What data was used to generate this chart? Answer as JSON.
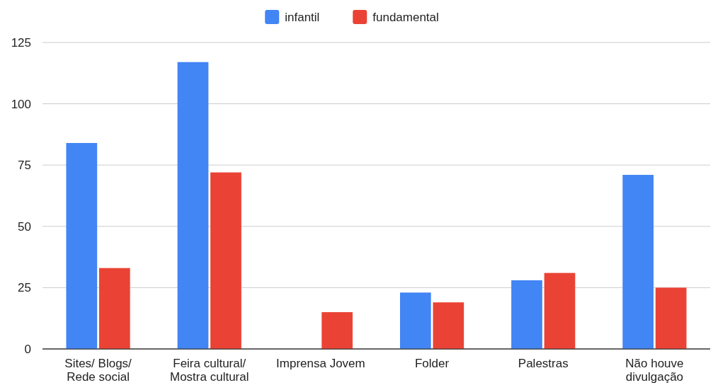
{
  "chart_data": {
    "type": "bar",
    "categories": [
      "Sites/ Blogs/ Rede social",
      "Feira cultural/ Mostra cultural",
      "Imprensa Jovem",
      "Folder",
      "Palestras",
      "Não houve divulgação"
    ],
    "series": [
      {
        "name": "infantil",
        "color": "#4285f4",
        "values": [
          84,
          117,
          0,
          23,
          28,
          71
        ]
      },
      {
        "name": "fundamental",
        "color": "#ea4335",
        "values": [
          33,
          72,
          15,
          19,
          31,
          25
        ]
      }
    ],
    "ylim": [
      0,
      125
    ],
    "yticks": [
      0,
      25,
      50,
      75,
      100,
      125
    ],
    "grid": "y",
    "legend": "top"
  }
}
